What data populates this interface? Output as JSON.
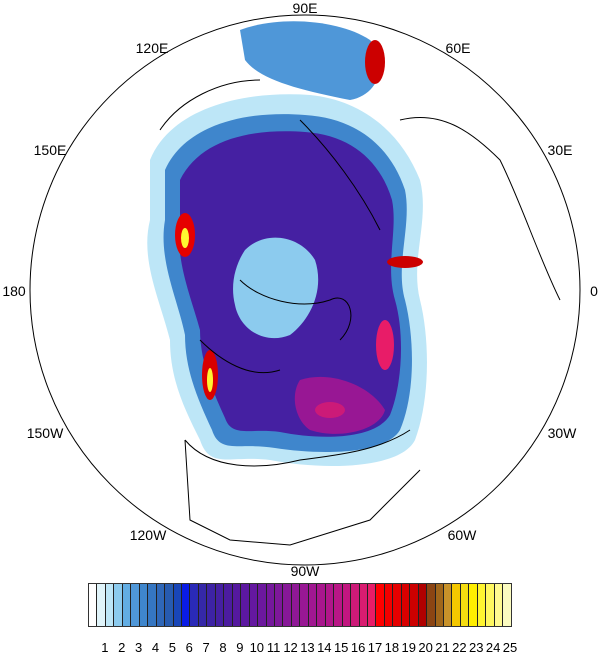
{
  "map": {
    "projection": "polar-stereographic-north",
    "longitude_labels": {
      "90E": "90E",
      "60E": "60E",
      "30E": "30E",
      "0": "0",
      "30W": "30W",
      "60W": "60W",
      "90W": "90W",
      "120W": "120W",
      "150W": "150W",
      "180": "180",
      "150E": "150E",
      "120E": "120E"
    }
  },
  "colorbar": {
    "labels": [
      "1",
      "2",
      "3",
      "4",
      "5",
      "6",
      "7",
      "8",
      "9",
      "10",
      "11",
      "12",
      "13",
      "14",
      "15",
      "16",
      "17",
      "18",
      "19",
      "20",
      "21",
      "22",
      "23",
      "24",
      "25"
    ],
    "colors": [
      "#ffffff",
      "#e0f4fa",
      "#bde6f7",
      "#8ccbee",
      "#62ade3",
      "#4f97d8",
      "#3f86cc",
      "#3576c2",
      "#2f67b8",
      "#275bb0",
      "#1946b8",
      "#0a1ce6",
      "#2a2ab8",
      "#3528a8",
      "#3d23a5",
      "#4520a2",
      "#4c1ca0",
      "#55199f",
      "#5c18a0",
      "#6418a0",
      "#6c189e",
      "#75189c",
      "#7e189a",
      "#871898",
      "#8f1896",
      "#981794",
      "#a11791",
      "#a9168d",
      "#b1168a",
      "#b91686",
      "#c21680",
      "#cc1a78",
      "#d91c70",
      "#e81c68",
      "#ff0000",
      "#f20000",
      "#e60000",
      "#d90000",
      "#cc0000",
      "#b00000",
      "#8b4513",
      "#a0661a",
      "#c8922a",
      "#f5c800",
      "#f5dc10",
      "#ffee00",
      "#fff530",
      "#fff860",
      "#fffa90",
      "#fbfbc0"
    ]
  }
}
